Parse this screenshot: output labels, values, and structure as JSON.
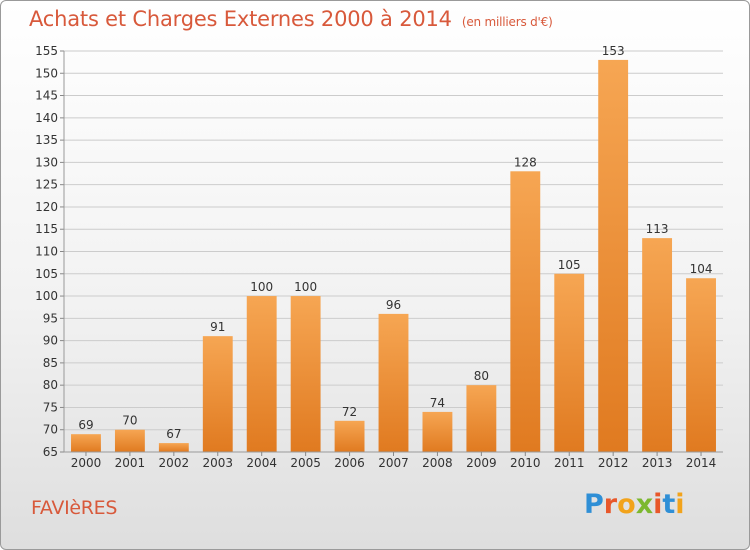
{
  "header": {
    "title": "Achats et Charges Externes 2000 à 2014",
    "subtitle": "(en milliers d'€)"
  },
  "footer": {
    "place": "FAVIèRES"
  },
  "logo": {
    "text": "Proxiti",
    "letters": [
      "P",
      "r",
      "o",
      "x",
      "i",
      "t",
      "i"
    ],
    "letter_colors": [
      "#2f8fd6",
      "#e8572a",
      "#f2a31b",
      "#7cb82f",
      "#e8572a",
      "#2f8fd6",
      "#f2a31b"
    ]
  },
  "colors": {
    "bar_light": "#f6a653",
    "bar_dark": "#e07a20",
    "accent": "#d8593b",
    "grid": "#cccccc",
    "text": "#333333"
  },
  "chart_data": {
    "type": "bar",
    "title": "Achats et Charges Externes 2000 à 2014",
    "subtitle": "(en milliers d'€)",
    "categories": [
      "2000",
      "2001",
      "2002",
      "2003",
      "2004",
      "2005",
      "2006",
      "2007",
      "2008",
      "2009",
      "2010",
      "2011",
      "2012",
      "2013",
      "2014"
    ],
    "values": [
      69,
      70,
      67,
      91,
      100,
      100,
      72,
      96,
      74,
      80,
      128,
      105,
      153,
      113,
      104
    ],
    "ylim": [
      65,
      155
    ],
    "yticks": [
      65,
      70,
      75,
      80,
      85,
      90,
      95,
      100,
      105,
      110,
      115,
      120,
      125,
      130,
      135,
      140,
      145,
      150,
      155
    ],
    "grid": true,
    "data_labels": true
  }
}
